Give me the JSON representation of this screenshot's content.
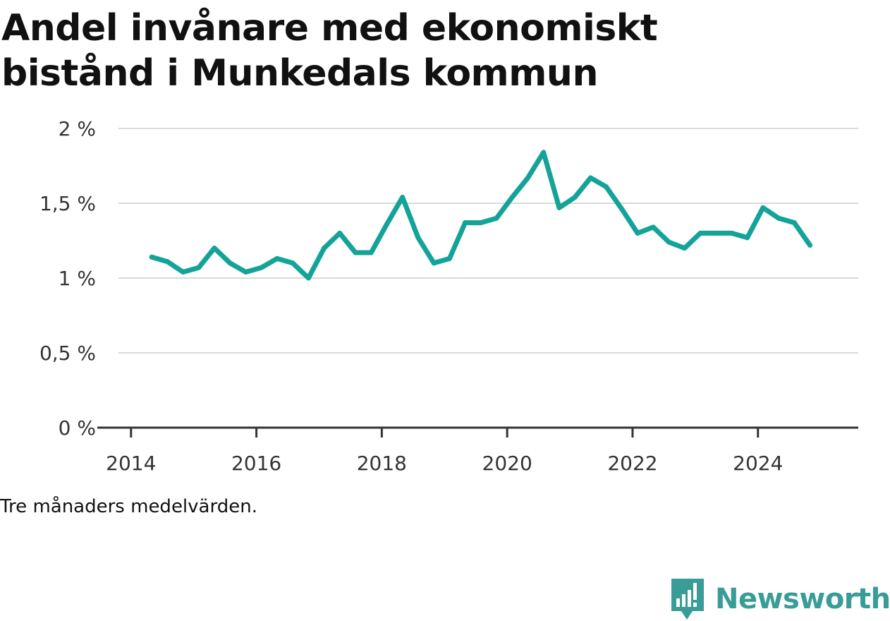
{
  "title_lines": [
    "Andel invånare med ekonomiskt",
    "bistånd i Munkedals kommun"
  ],
  "note": "Tre månaders medelvärden.",
  "brand": {
    "name": "Newsworthy",
    "color": "#3a9c96",
    "icon": "newsworthy-logo-icon"
  },
  "chart_data": {
    "type": "line",
    "title": "Andel invånare med ekonomiskt bistånd i Munkedals kommun",
    "xlabel": "",
    "ylabel": "",
    "xlim": [
      2013.8,
      2025.6
    ],
    "ylim": [
      0,
      2
    ],
    "x_ticks": [
      2014,
      2016,
      2018,
      2020,
      2022,
      2024
    ],
    "x_tick_labels": [
      "2014",
      "2016",
      "2018",
      "2020",
      "2022",
      "2024"
    ],
    "y_ticks": [
      0,
      0.5,
      1,
      1.5,
      2
    ],
    "y_tick_labels": [
      "0 %",
      "0,5 %",
      "1 %",
      "1,5 %",
      "2 %"
    ],
    "grid": true,
    "line_color": "#14a398",
    "series": [
      {
        "x": [
          2014.33,
          2014.58,
          2014.83,
          2015.08,
          2015.33,
          2015.58,
          2015.83,
          2016.08,
          2016.33,
          2016.58,
          2016.83,
          2017.08,
          2017.33,
          2017.58,
          2017.83,
          2018.08,
          2018.33,
          2018.58,
          2018.83,
          2019.08,
          2019.33,
          2019.58,
          2019.83,
          2020.08,
          2020.33,
          2020.58,
          2020.83,
          2021.08,
          2021.33,
          2021.58,
          2021.83,
          2022.08,
          2022.33,
          2022.58,
          2022.83,
          2023.08,
          2023.33,
          2023.58,
          2023.83,
          2024.08,
          2024.33,
          2024.58,
          2024.83
        ],
        "values": [
          1.14,
          1.11,
          1.04,
          1.07,
          1.2,
          1.1,
          1.04,
          1.07,
          1.13,
          1.1,
          1.0,
          1.2,
          1.3,
          1.17,
          1.17,
          1.36,
          1.54,
          1.27,
          1.1,
          1.13,
          1.37,
          1.37,
          1.4,
          1.54,
          1.67,
          1.84,
          1.47,
          1.54,
          1.67,
          1.61,
          1.46,
          1.3,
          1.34,
          1.24,
          1.2,
          1.3,
          1.3,
          1.3,
          1.27,
          1.47,
          1.4,
          1.37,
          1.22
        ]
      }
    ]
  }
}
